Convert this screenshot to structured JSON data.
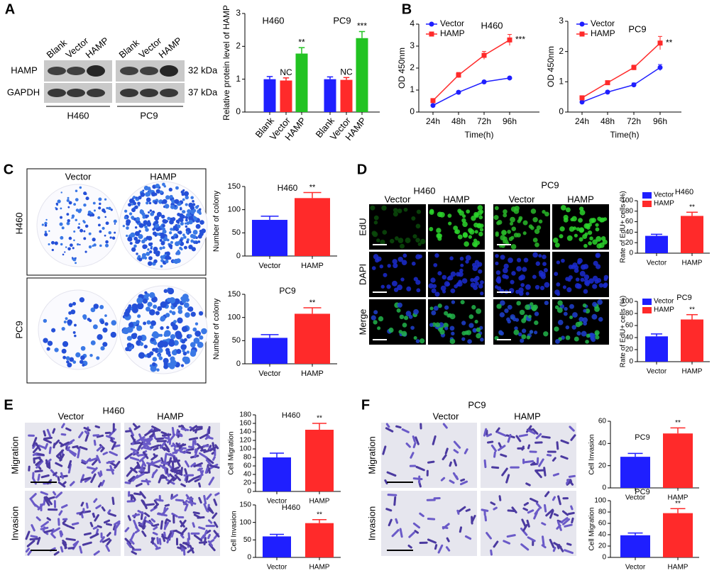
{
  "panel_labels": [
    "A",
    "B",
    "C",
    "D",
    "E",
    "F"
  ],
  "blot": {
    "lanes": [
      "Blank",
      "Vector",
      "HAMP",
      "Blank",
      "Vector",
      "HAMP"
    ],
    "proteins": [
      "HAMP",
      "GAPDH"
    ],
    "sizes": [
      "32 kDa",
      "37 kDa"
    ],
    "groups": [
      "H460",
      "PC9"
    ]
  },
  "colony": {
    "columns": [
      "Vector",
      "HAMP"
    ],
    "rows": [
      "H460",
      "PC9"
    ]
  },
  "edu": {
    "cells": [
      "H460",
      "PC9"
    ],
    "columns": [
      "Vector",
      "HAMP",
      "Vector",
      "HAMP"
    ],
    "rows": [
      "EdU",
      "DAPI",
      "Merge"
    ]
  },
  "transwell_e": {
    "cell": "H460",
    "columns": [
      "Vector",
      "HAMP"
    ],
    "rows": [
      "Migration",
      "Invasion"
    ]
  },
  "transwell_f": {
    "cell": "PC9",
    "columns": [
      "Vector",
      "HAMP"
    ],
    "rows": [
      "Migration",
      "Invasion"
    ]
  },
  "chart_data": [
    {
      "type": "bar",
      "ylabel": "Relative protein level of HAMP",
      "group_titles": [
        "H460",
        "PC9"
      ],
      "categories": [
        "Blank",
        "Vector",
        "HAMP",
        "Blank",
        "Vector",
        "HAMP"
      ],
      "values": [
        1,
        0.96,
        1.78,
        1,
        0.98,
        2.25
      ],
      "errors": [
        0.08,
        0.08,
        0.18,
        0.07,
        0.07,
        0.2
      ],
      "colors": [
        "#1f1fff",
        "#ff2a2a",
        "#22c322",
        "#1f1fff",
        "#ff2a2a",
        "#22c322"
      ],
      "sig_labels": [
        null,
        "NC",
        "**",
        null,
        "NC",
        "***"
      ],
      "ylim": [
        0,
        3
      ],
      "yticks": [
        0,
        1,
        2,
        3
      ]
    },
    {
      "type": "line",
      "title": "H460",
      "xlabel": "Time(h)",
      "ylabel": "OD 450nm",
      "categories": [
        "24h",
        "48h",
        "72h",
        "96h"
      ],
      "series": [
        {
          "name": "Vector",
          "color": "#1f1fff",
          "marker": "circle",
          "values": [
            0.3,
            0.9,
            1.37,
            1.55
          ],
          "errors": [
            0.03,
            0.05,
            0.05,
            0.05
          ]
        },
        {
          "name": "HAMP",
          "color": "#ff2a2a",
          "marker": "square",
          "values": [
            0.52,
            1.68,
            2.58,
            3.28
          ],
          "errors": [
            0.05,
            0.12,
            0.18,
            0.25
          ]
        }
      ],
      "sig_label": "***",
      "ylim": [
        0,
        4
      ],
      "yticks": [
        0,
        1,
        2,
        3,
        4
      ],
      "legend": "upper left"
    },
    {
      "type": "line",
      "title": "PC9",
      "xlabel": "Time(h)",
      "ylabel": "OD 450nm",
      "categories": [
        "24h",
        "48h",
        "72h",
        "96h"
      ],
      "series": [
        {
          "name": "Vector",
          "color": "#1f1fff",
          "marker": "circle",
          "values": [
            0.33,
            0.66,
            0.9,
            1.47
          ],
          "errors": [
            0.03,
            0.04,
            0.06,
            0.1
          ]
        },
        {
          "name": "HAMP",
          "color": "#ff2a2a",
          "marker": "square",
          "values": [
            0.47,
            0.97,
            1.47,
            2.28
          ],
          "errors": [
            0.03,
            0.05,
            0.08,
            0.22
          ]
        }
      ],
      "sig_label": "**",
      "ylim": [
        0,
        3
      ],
      "yticks": [
        0,
        1,
        2,
        3
      ],
      "legend": "upper left"
    },
    {
      "type": "bar",
      "title": "H460",
      "ylabel": "Number of colony",
      "categories": [
        "Vector",
        "HAMP"
      ],
      "values": [
        78,
        125
      ],
      "errors": [
        8,
        12
      ],
      "colors": [
        "#1f1fff",
        "#ff2a2a"
      ],
      "sig_labels": [
        null,
        "**"
      ],
      "ylim": [
        0,
        150
      ],
      "yticks": [
        0,
        50,
        100,
        150
      ]
    },
    {
      "type": "bar",
      "title": "PC9",
      "ylabel": "Number of colony",
      "categories": [
        "Vector",
        "HAMP"
      ],
      "values": [
        56,
        108
      ],
      "errors": [
        7,
        13
      ],
      "colors": [
        "#1f1fff",
        "#ff2a2a"
      ],
      "sig_labels": [
        null,
        "**"
      ],
      "ylim": [
        0,
        150
      ],
      "yticks": [
        0,
        50,
        100,
        150
      ]
    },
    {
      "type": "bar",
      "title": "H460",
      "ylabel": "Rate of EdU+ cells (%)",
      "categories": [
        "Vector",
        "HAMP"
      ],
      "values": [
        33,
        71
      ],
      "errors": [
        3,
        7
      ],
      "colors": [
        "#1f1fff",
        "#ff2a2a"
      ],
      "sig_labels": [
        null,
        "**"
      ],
      "ylim": [
        0,
        100
      ],
      "yticks": [
        0,
        20,
        40,
        60,
        80,
        100
      ],
      "legend": "upper left"
    },
    {
      "type": "bar",
      "title": "PC9",
      "ylabel": "Rate of EdU+ cells (%)",
      "categories": [
        "Vector",
        "HAMP"
      ],
      "values": [
        42,
        70
      ],
      "errors": [
        4,
        8
      ],
      "colors": [
        "#1f1fff",
        "#ff2a2a"
      ],
      "sig_labels": [
        null,
        "**"
      ],
      "ylim": [
        0,
        100
      ],
      "yticks": [
        0,
        20,
        40,
        60,
        80,
        100
      ],
      "legend": "upper left"
    },
    {
      "type": "bar",
      "title": "H460",
      "ylabel": "Cell Migration",
      "categories": [
        "Vector",
        "HAMP"
      ],
      "values": [
        80,
        145
      ],
      "errors": [
        10,
        15
      ],
      "colors": [
        "#1f1fff",
        "#ff2a2a"
      ],
      "sig_labels": [
        null,
        "**"
      ],
      "ylim": [
        0,
        180
      ],
      "yticks": [
        0,
        20,
        40,
        60,
        80,
        100,
        120,
        140,
        160,
        180
      ]
    },
    {
      "type": "bar",
      "title": "H460",
      "ylabel": "Cell Invasion",
      "categories": [
        "Vector",
        "HAMP"
      ],
      "values": [
        60,
        98
      ],
      "errors": [
        6,
        10
      ],
      "colors": [
        "#1f1fff",
        "#ff2a2a"
      ],
      "sig_labels": [
        null,
        "**"
      ],
      "ylim": [
        0,
        150
      ],
      "yticks": [
        0,
        50,
        100,
        150
      ]
    },
    {
      "type": "bar",
      "title": "PC9",
      "ylabel": "Cell Invasion",
      "categories": [
        "Vector",
        "HAMP"
      ],
      "values": [
        28,
        49
      ],
      "errors": [
        3,
        5
      ],
      "colors": [
        "#1f1fff",
        "#ff2a2a"
      ],
      "sig_labels": [
        null,
        "**"
      ],
      "ylim": [
        0,
        60
      ],
      "yticks": [
        0,
        20,
        40,
        60
      ]
    },
    {
      "type": "bar",
      "title": "PC9",
      "ylabel": "Cell Migration",
      "categories": [
        "Vector",
        "HAMP"
      ],
      "values": [
        39,
        78
      ],
      "errors": [
        4,
        8
      ],
      "colors": [
        "#1f1fff",
        "#ff2a2a"
      ],
      "sig_labels": [
        null,
        "**"
      ],
      "ylim": [
        0,
        100
      ],
      "yticks": [
        0,
        20,
        40,
        60,
        80,
        100
      ]
    }
  ]
}
